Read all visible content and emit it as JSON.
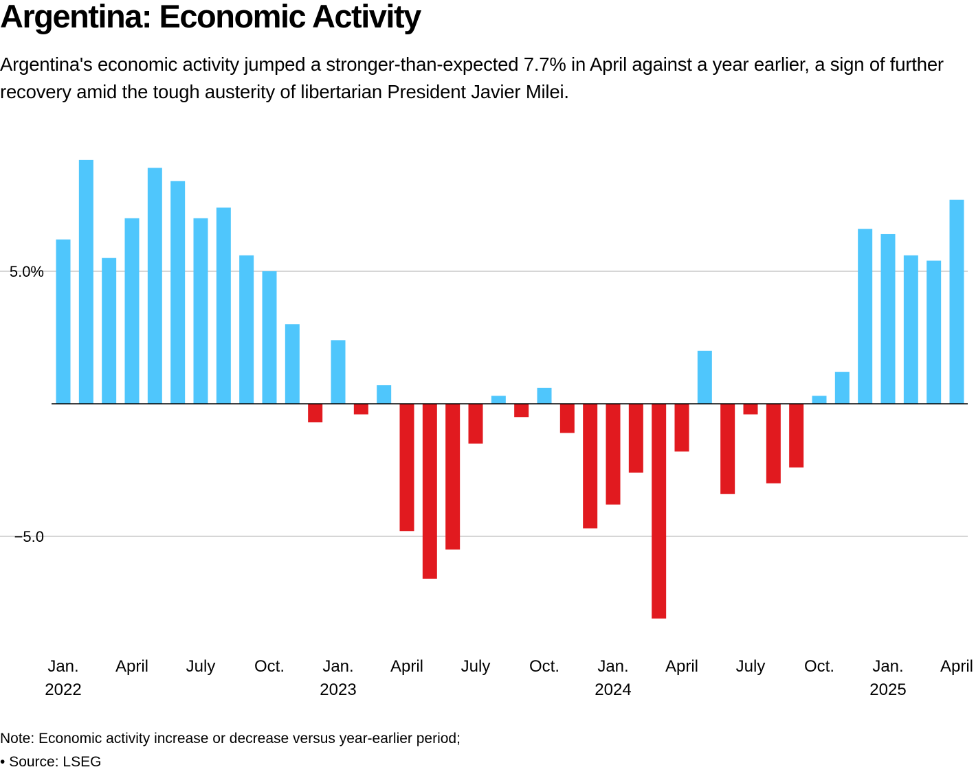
{
  "title": "Argentina: Economic Activity",
  "subtitle": "Argentina's economic activity jumped a stronger-than-expected 7.7% in April against a year earlier, a sign of further recovery amid the tough austerity of libertarian President Javier Milei.",
  "note": "Note: Economic activity increase or decrease versus year-earlier period;",
  "source": "• Source: LSEG",
  "chart_data": {
    "type": "bar",
    "title": "Argentina: Economic Activity",
    "xlabel": "",
    "ylabel": "",
    "ylim": [
      -10,
      10
    ],
    "grid": true,
    "colors": {
      "positive": "#4fc6fc",
      "negative": "#e11a1f",
      "zero_line": "#000000",
      "grid": "#c8c8c8"
    },
    "y_ticks": [
      {
        "value": 5,
        "label": "5.0%"
      },
      {
        "value": -5,
        "label": "−5.0"
      }
    ],
    "categories": [
      "2022-01",
      "2022-02",
      "2022-03",
      "2022-04",
      "2022-05",
      "2022-06",
      "2022-07",
      "2022-08",
      "2022-09",
      "2022-10",
      "2022-11",
      "2022-12",
      "2023-01",
      "2023-02",
      "2023-03",
      "2023-04",
      "2023-05",
      "2023-06",
      "2023-07",
      "2023-08",
      "2023-09",
      "2023-10",
      "2023-11",
      "2023-12",
      "2024-01",
      "2024-02",
      "2024-03",
      "2024-04",
      "2024-05",
      "2024-06",
      "2024-07",
      "2024-08",
      "2024-09",
      "2024-10",
      "2024-11",
      "2024-12",
      "2025-01",
      "2025-02",
      "2025-03",
      "2025-04"
    ],
    "values": [
      6.2,
      9.2,
      5.5,
      7.0,
      8.9,
      8.4,
      7.0,
      7.4,
      5.6,
      5.0,
      3.0,
      -0.7,
      2.4,
      -0.4,
      0.7,
      -4.8,
      -6.6,
      -5.5,
      -1.5,
      0.3,
      -0.5,
      0.6,
      -1.1,
      -4.7,
      -3.8,
      -2.6,
      -8.1,
      -1.8,
      2.0,
      -3.4,
      -0.4,
      -3.0,
      -2.4,
      0.3,
      1.2,
      6.6,
      6.4,
      5.6,
      5.4,
      7.7
    ],
    "x_ticks": [
      {
        "category": "2022-01",
        "line1": "Jan.",
        "line2": "2022"
      },
      {
        "category": "2022-04",
        "line1": "April",
        "line2": ""
      },
      {
        "category": "2022-07",
        "line1": "July",
        "line2": ""
      },
      {
        "category": "2022-10",
        "line1": "Oct.",
        "line2": ""
      },
      {
        "category": "2023-01",
        "line1": "Jan.",
        "line2": "2023"
      },
      {
        "category": "2023-04",
        "line1": "April",
        "line2": ""
      },
      {
        "category": "2023-07",
        "line1": "July",
        "line2": ""
      },
      {
        "category": "2023-10",
        "line1": "Oct.",
        "line2": ""
      },
      {
        "category": "2024-01",
        "line1": "Jan.",
        "line2": "2024"
      },
      {
        "category": "2024-04",
        "line1": "April",
        "line2": ""
      },
      {
        "category": "2024-07",
        "line1": "July",
        "line2": ""
      },
      {
        "category": "2024-10",
        "line1": "Oct.",
        "line2": ""
      },
      {
        "category": "2025-01",
        "line1": "Jan.",
        "line2": "2025"
      },
      {
        "category": "2025-04",
        "line1": "April",
        "line2": ""
      }
    ]
  }
}
